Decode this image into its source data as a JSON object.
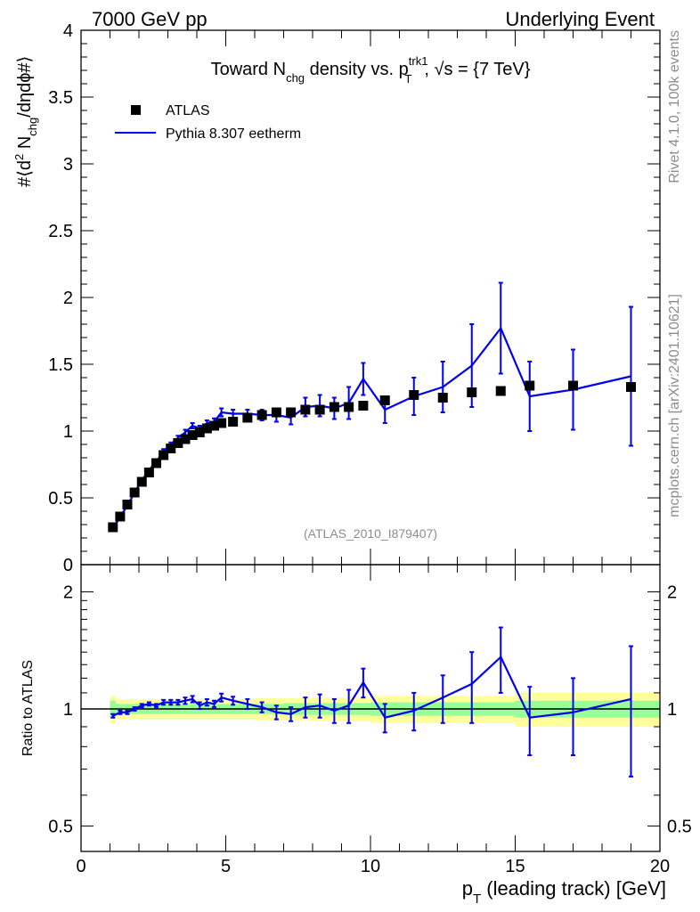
{
  "header": {
    "left": "7000 GeV pp",
    "right": "Underlying Event"
  },
  "side_text": {
    "rivet": "Rivet 4.1.0,  100k events",
    "mcplots": "mcplots.cern.ch [arXiv:2401.10621]"
  },
  "analysis_tag": "(ATLAS_2010_I879407)",
  "colors": {
    "data": "#000000",
    "mc": "#0000ee",
    "band_inner": "#98ff98",
    "band_outer": "#ffff9b"
  },
  "chart_data": [
    {
      "type": "scatter",
      "panel": "main",
      "title": "Toward N_chg density vs. p_T^trk1, √s = {7 TeV}",
      "title_parts": {
        "a": "Toward N",
        "a_sub": "chg",
        "b": " density vs. p",
        "b_sup": "trk1",
        "b_sub": "T",
        "c": ", √s = {7 TeV}"
      },
      "ylabel_parts": {
        "a": "#⟨d",
        "a_sup": "2",
        "b": " N",
        "b_sub": "chg",
        "c": "/dηdϕ#⟩"
      },
      "xlim": [
        0,
        20
      ],
      "ylim": [
        0,
        4
      ],
      "yticks": [
        "0",
        "0.5",
        "1",
        "1.5",
        "2",
        "2.5",
        "3",
        "3.5",
        "4"
      ],
      "legend": {
        "position": "top-left",
        "entries": [
          "ATLAS",
          "Pythia 8.307 eetherm"
        ]
      },
      "series": [
        {
          "name": "ATLAS",
          "style": "markers",
          "x": [
            1.1,
            1.35,
            1.6,
            1.85,
            2.1,
            2.35,
            2.6,
            2.85,
            3.1,
            3.35,
            3.6,
            3.85,
            4.1,
            4.35,
            4.6,
            4.85,
            5.25,
            5.75,
            6.25,
            6.75,
            7.25,
            7.75,
            8.25,
            8.75,
            9.25,
            9.75,
            10.5,
            11.5,
            12.5,
            13.5,
            14.5,
            15.5,
            17.0,
            19.0
          ],
          "y": [
            0.28,
            0.36,
            0.45,
            0.54,
            0.62,
            0.69,
            0.76,
            0.82,
            0.87,
            0.91,
            0.94,
            0.97,
            0.99,
            1.02,
            1.04,
            1.06,
            1.07,
            1.1,
            1.12,
            1.14,
            1.14,
            1.16,
            1.16,
            1.18,
            1.18,
            1.19,
            1.23,
            1.27,
            1.25,
            1.29,
            1.3,
            1.34,
            1.34,
            1.33
          ]
        },
        {
          "name": "Pythia 8.307 eetherm",
          "style": "line",
          "x": [
            1.1,
            1.35,
            1.6,
            1.85,
            2.1,
            2.35,
            2.6,
            2.85,
            3.1,
            3.35,
            3.6,
            3.85,
            4.1,
            4.35,
            4.6,
            4.85,
            5.25,
            5.75,
            6.25,
            6.75,
            7.25,
            7.75,
            8.25,
            8.75,
            9.25,
            9.75,
            10.5,
            11.5,
            12.5,
            13.5,
            14.5,
            15.5,
            17.0,
            19.0
          ],
          "y": [
            0.27,
            0.36,
            0.44,
            0.54,
            0.63,
            0.71,
            0.77,
            0.85,
            0.9,
            0.95,
            0.99,
            1.04,
            1.02,
            1.06,
            1.07,
            1.14,
            1.13,
            1.13,
            1.12,
            1.12,
            1.1,
            1.18,
            1.19,
            1.17,
            1.21,
            1.39,
            1.16,
            1.26,
            1.33,
            1.49,
            1.77,
            1.26,
            1.31,
            1.41
          ],
          "yerr": [
            0.01,
            0.01,
            0.01,
            0.01,
            0.01,
            0.01,
            0.01,
            0.015,
            0.015,
            0.015,
            0.02,
            0.02,
            0.02,
            0.02,
            0.025,
            0.03,
            0.03,
            0.03,
            0.04,
            0.05,
            0.05,
            0.07,
            0.08,
            0.08,
            0.12,
            0.12,
            0.1,
            0.14,
            0.19,
            0.31,
            0.34,
            0.26,
            0.3,
            0.52
          ]
        }
      ]
    },
    {
      "type": "line",
      "panel": "ratio",
      "ylabel": "Ratio to ATLAS",
      "xlabel": "p_T (leading track) [GeV]",
      "xlabel_parts": {
        "a": "p",
        "a_sub": "T",
        "b": " (leading track) [GeV]"
      },
      "xlim": [
        0,
        20
      ],
      "ylim": [
        0.43,
        2.35
      ],
      "ylog": true,
      "xticks": [
        "0",
        "5",
        "10",
        "15",
        "20"
      ],
      "yticks": [
        "0.5",
        "1",
        "2"
      ],
      "reference_line": 1,
      "bands": {
        "edges": [
          1.0,
          1.2,
          1.5,
          1.7,
          2.0,
          2.2,
          2.5,
          2.7,
          3.0,
          3.2,
          3.5,
          3.7,
          4.0,
          4.2,
          4.5,
          4.7,
          5.0,
          5.5,
          6.0,
          6.5,
          7.0,
          7.5,
          8.0,
          8.5,
          9.0,
          9.5,
          10.0,
          11.0,
          12.0,
          13.0,
          14.0,
          15.0,
          16.0,
          18.0,
          20.0
        ],
        "inner": [
          0.05,
          0.03,
          0.03,
          0.03,
          0.03,
          0.03,
          0.03,
          0.03,
          0.03,
          0.03,
          0.03,
          0.03,
          0.03,
          0.03,
          0.03,
          0.03,
          0.03,
          0.03,
          0.03,
          0.03,
          0.035,
          0.035,
          0.035,
          0.035,
          0.035,
          0.035,
          0.04,
          0.04,
          0.04,
          0.04,
          0.04,
          0.05,
          0.05,
          0.05
        ],
        "outer": [
          0.08,
          0.06,
          0.06,
          0.06,
          0.06,
          0.06,
          0.06,
          0.06,
          0.06,
          0.06,
          0.06,
          0.06,
          0.06,
          0.06,
          0.06,
          0.06,
          0.06,
          0.06,
          0.065,
          0.065,
          0.065,
          0.065,
          0.07,
          0.07,
          0.07,
          0.07,
          0.08,
          0.08,
          0.08,
          0.08,
          0.08,
          0.1,
          0.1,
          0.1
        ]
      },
      "series": [
        {
          "name": "Pythia 8.307 eetherm / ATLAS",
          "x": [
            1.1,
            1.35,
            1.6,
            1.85,
            2.1,
            2.35,
            2.6,
            2.85,
            3.1,
            3.35,
            3.6,
            3.85,
            4.1,
            4.35,
            4.6,
            4.85,
            5.25,
            5.75,
            6.25,
            6.75,
            7.25,
            7.75,
            8.25,
            8.75,
            9.25,
            9.75,
            10.5,
            11.5,
            12.5,
            13.5,
            14.5,
            15.5,
            17.0,
            19.0
          ],
          "y": [
            0.96,
            0.98,
            0.98,
            1.0,
            1.02,
            1.03,
            1.02,
            1.04,
            1.04,
            1.04,
            1.05,
            1.06,
            1.02,
            1.04,
            1.03,
            1.07,
            1.05,
            1.03,
            1.01,
            0.98,
            0.97,
            1.01,
            1.02,
            0.99,
            1.02,
            1.17,
            0.95,
            0.99,
            1.07,
            1.16,
            1.36,
            0.95,
            0.98,
            1.06
          ],
          "yerr": [
            0.01,
            0.01,
            0.01,
            0.01,
            0.01,
            0.01,
            0.01,
            0.015,
            0.015,
            0.015,
            0.02,
            0.02,
            0.02,
            0.02,
            0.02,
            0.025,
            0.025,
            0.03,
            0.03,
            0.04,
            0.04,
            0.06,
            0.07,
            0.07,
            0.1,
            0.1,
            0.08,
            0.11,
            0.15,
            0.24,
            0.26,
            0.19,
            0.22,
            0.39
          ]
        }
      ]
    }
  ]
}
